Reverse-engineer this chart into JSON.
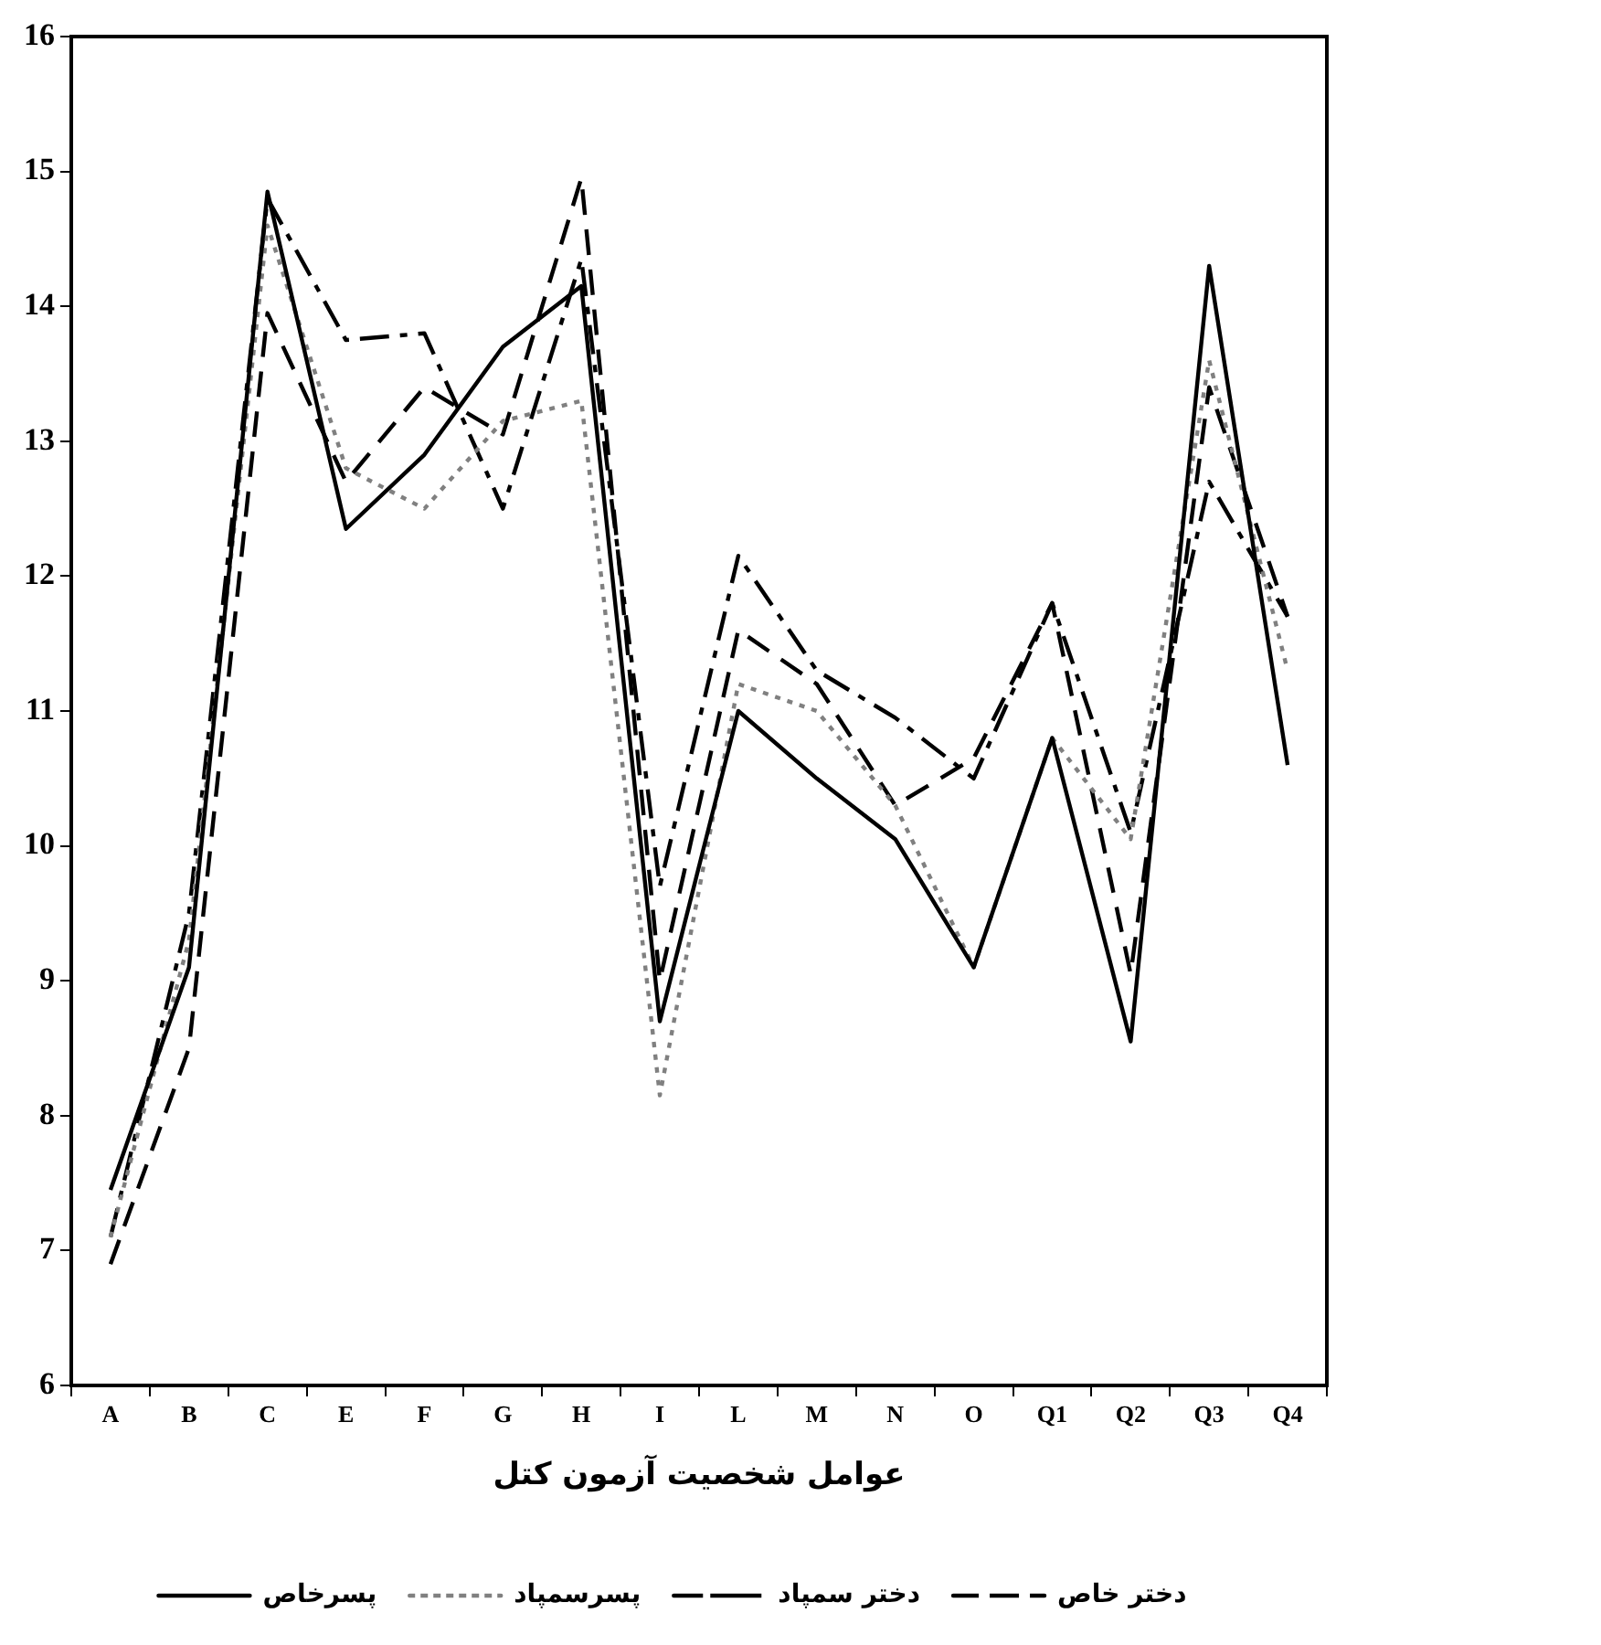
{
  "chart_data": {
    "type": "line",
    "xlabel": "عوامل شخصیت آزمون کتل",
    "categories": [
      "A",
      "B",
      "C",
      "E",
      "F",
      "G",
      "H",
      "I",
      "L",
      "M",
      "N",
      "O",
      "Q1",
      "Q2",
      "Q3",
      "Q4"
    ],
    "ylim": [
      6,
      16
    ],
    "yticks": [
      6,
      7,
      8,
      9,
      10,
      11,
      12,
      13,
      14,
      15,
      16
    ],
    "grid": false,
    "legend": "bottom",
    "marker": "none",
    "series": [
      {
        "name": "پسرخاص",
        "color": "#000000",
        "line_style": "solid",
        "values": [
          7.45,
          9.1,
          14.85,
          12.35,
          12.9,
          13.7,
          14.15,
          8.7,
          11.0,
          10.5,
          10.05,
          9.1,
          10.8,
          8.55,
          14.3,
          10.6
        ]
      },
      {
        "name": "پسرسمپاد",
        "color": "#808080",
        "line_style": "dotted",
        "values": [
          7.1,
          9.3,
          14.6,
          12.8,
          12.5,
          13.15,
          13.3,
          8.15,
          11.2,
          11.0,
          10.3,
          9.1,
          10.8,
          10.05,
          13.6,
          11.3
        ]
      },
      {
        "name": "دختر سمپاد",
        "color": "#000000",
        "line_style": "dashdot",
        "values": [
          7.1,
          9.5,
          14.8,
          13.75,
          13.8,
          12.5,
          14.35,
          9.7,
          12.15,
          11.3,
          10.95,
          10.5,
          11.8,
          10.1,
          12.7,
          11.7
        ]
      },
      {
        "name": "دختر خاص",
        "color": "#000000",
        "line_style": "dashed",
        "values": [
          6.9,
          8.5,
          13.95,
          12.7,
          13.4,
          13.05,
          14.95,
          9.0,
          11.6,
          11.2,
          10.3,
          10.65,
          11.8,
          9.05,
          13.4,
          11.7
        ]
      }
    ]
  }
}
